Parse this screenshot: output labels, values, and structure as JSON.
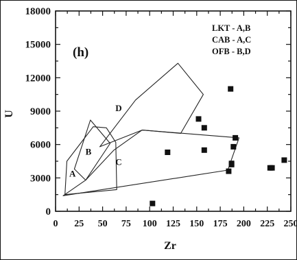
{
  "chart_data": {
    "type": "scatter",
    "panel_label": "(h)",
    "xlabel": "Zr",
    "ylabel": "U",
    "xlim": [
      0,
      250
    ],
    "ylim": [
      0,
      18000
    ],
    "xticks": [
      0,
      25,
      50,
      75,
      100,
      125,
      150,
      175,
      200,
      225,
      250
    ],
    "xtick_labels": [
      "0",
      "25",
      "50",
      "75",
      "100",
      "125",
      "150",
      "175",
      "200",
      "225",
      "250"
    ],
    "yticks": [
      0,
      3000,
      6000,
      9000,
      12000,
      15000,
      18000
    ],
    "ytick_labels": [
      "0",
      "3000",
      "6000",
      "9000",
      "12000",
      "15000",
      "18000"
    ],
    "legend": [
      "LKT - A,B",
      "CAB - A,C",
      "OFB - B,D"
    ],
    "regions": [
      {
        "label": "A",
        "label_at": [
          18,
          3100
        ],
        "points": [
          [
            10,
            1500
          ],
          [
            12,
            4500
          ],
          [
            40,
            7600
          ],
          [
            54,
            7500
          ],
          [
            64,
            6200
          ],
          [
            65,
            1950
          ]
        ]
      },
      {
        "label": "B",
        "label_at": [
          35,
          5100
        ],
        "points": [
          [
            20,
            3800
          ],
          [
            37,
            8200
          ],
          [
            58,
            6100
          ],
          [
            32,
            2800
          ]
        ]
      },
      {
        "label": "C",
        "label_at": [
          67,
          4150
        ],
        "points": [
          [
            8,
            1400
          ],
          [
            183,
            3700
          ],
          [
            195,
            6600
          ],
          [
            92,
            7300
          ],
          [
            62,
            5500
          ],
          [
            32,
            2800
          ]
        ]
      },
      {
        "label": "D",
        "label_at": [
          67,
          9000
        ],
        "points": [
          [
            47,
            5800
          ],
          [
            85,
            10000
          ],
          [
            130,
            13300
          ],
          [
            157,
            10500
          ],
          [
            133,
            7000
          ],
          [
            92,
            7300
          ]
        ]
      }
    ],
    "points": [
      [
        103,
        700
      ],
      [
        119,
        5300
      ],
      [
        152,
        8300
      ],
      [
        158,
        7500
      ],
      [
        158,
        5500
      ],
      [
        184,
        3600
      ],
      [
        187,
        4200
      ],
      [
        187,
        4300
      ],
      [
        186,
        11000
      ],
      [
        189,
        5800
      ],
      [
        191,
        6600
      ],
      [
        228,
        3900
      ],
      [
        230,
        3900
      ],
      [
        243,
        4600
      ]
    ]
  }
}
